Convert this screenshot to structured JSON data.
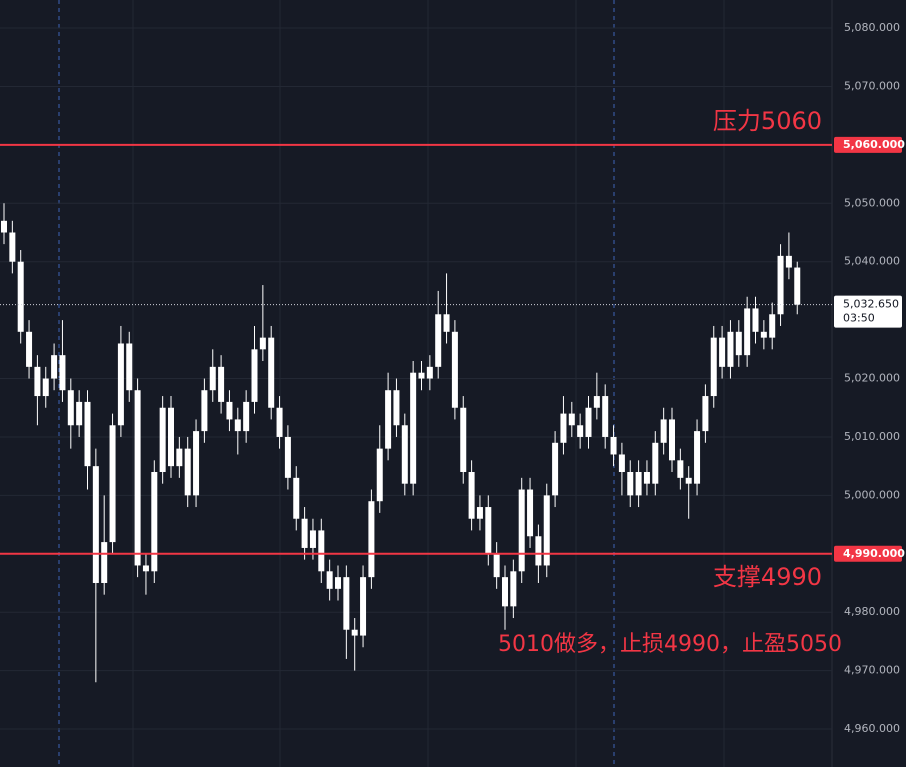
{
  "chart_data": {
    "type": "candlestick",
    "open": [
      5047,
      5045,
      5040,
      5028,
      5022,
      5017,
      5020,
      5024,
      5018,
      5012,
      5016,
      5005,
      4985,
      4992,
      5012,
      5026,
      5018,
      4988,
      4987,
      5004,
      5015,
      5005,
      5008,
      5000,
      5011,
      5018,
      5022,
      5016,
      5013,
      5011,
      5016,
      5025,
      5027,
      5015,
      5010,
      5003,
      4996,
      4991,
      4994,
      4987,
      4984,
      4986,
      4977,
      4976,
      4986,
      4999,
      5008,
      5018,
      5012,
      5002,
      5021,
      5020,
      5022,
      5031,
      5028,
      5015,
      5004,
      4996,
      4998,
      4990,
      4986,
      4981,
      4987,
      5001,
      4993,
      4988,
      5000,
      5009,
      5014,
      5012,
      5010,
      5015,
      5017,
      5010,
      5007,
      5004,
      5000,
      5004,
      5002,
      5009,
      5013,
      5006,
      5003,
      5002,
      5011,
      5017,
      5027,
      5022,
      5028,
      5024,
      5032,
      5028,
      5027,
      5031,
      5041,
      5039
    ],
    "high": [
      5050,
      5047,
      5042,
      5030,
      5024,
      5022,
      5026,
      5030,
      5020,
      5018,
      5018,
      5008,
      5000,
      5014,
      5029,
      5028,
      5020,
      4990,
      5006,
      5017,
      5017,
      5010,
      5010,
      5013,
      5020,
      5025,
      5024,
      5018,
      5015,
      5018,
      5029,
      5036,
      5029,
      5017,
      5012,
      5005,
      4998,
      4996,
      4996,
      4989,
      4988,
      4988,
      4979,
      4988,
      5001,
      5012,
      5021,
      5020,
      5014,
      5023,
      5023,
      5024,
      5035,
      5038,
      5030,
      5017,
      5006,
      5000,
      5000,
      4992,
      4988,
      4989,
      5003,
      5003,
      4995,
      5002,
      5011,
      5017,
      5016,
      5014,
      5017,
      5021,
      5019,
      5012,
      5009,
      5006,
      5006,
      5006,
      5011,
      5015,
      5015,
      5008,
      5005,
      5013,
      5019,
      5029,
      5029,
      5030,
      5030,
      5034,
      5034,
      5030,
      5033,
      5043,
      5045,
      5040
    ],
    "low": [
      5043,
      5038,
      5026,
      5020,
      5012,
      5015,
      5018,
      5016,
      5008,
      5010,
      5001,
      4968,
      4983,
      4990,
      5010,
      5016,
      4986,
      4983,
      4985,
      5002,
      5003,
      5003,
      4998,
      4998,
      5009,
      5016,
      5014,
      5011,
      5007,
      5009,
      5014,
      5023,
      5013,
      5008,
      5001,
      4994,
      4989,
      4989,
      4985,
      4982,
      4982,
      4972,
      4970,
      4974,
      4984,
      4997,
      5006,
      5010,
      5000,
      5000,
      5018,
      5018,
      5020,
      5026,
      5013,
      5002,
      4994,
      4994,
      4988,
      4984,
      4977,
      4979,
      4985,
      4991,
      4985,
      4986,
      4998,
      5007,
      5010,
      5008,
      5008,
      5013,
      5008,
      5005,
      5000,
      4998,
      4998,
      5000,
      5000,
      5007,
      5004,
      5001,
      4996,
      5000,
      5009,
      5015,
      5020,
      5020,
      5022,
      5022,
      5026,
      5025,
      5025,
      5029,
      5037,
      5031
    ],
    "close": [
      5045,
      5040,
      5028,
      5022,
      5017,
      5020,
      5024,
      5018,
      5012,
      5016,
      5005,
      4985,
      4992,
      5012,
      5026,
      5018,
      4988,
      4987,
      5004,
      5015,
      5005,
      5008,
      5000,
      5011,
      5018,
      5022,
      5016,
      5013,
      5011,
      5016,
      5025,
      5027,
      5015,
      5010,
      5003,
      4996,
      4991,
      4994,
      4987,
      4984,
      4986,
      4977,
      4976,
      4986,
      4999,
      5008,
      5018,
      5012,
      5002,
      5021,
      5020,
      5022,
      5031,
      5028,
      5015,
      5004,
      4996,
      4998,
      4990,
      4986,
      4981,
      4987,
      5001,
      4993,
      4988,
      5000,
      5009,
      5014,
      5012,
      5010,
      5015,
      5017,
      5010,
      5007,
      5004,
      5000,
      5004,
      5002,
      5009,
      5013,
      5006,
      5003,
      5002,
      5011,
      5017,
      5027,
      5022,
      5028,
      5024,
      5032,
      5028,
      5027,
      5031,
      5041,
      5039,
      5032.65
    ],
    "color": "#ffffff",
    "ylim": [
      4953.5,
      5084.8
    ],
    "yticks": [
      {
        "value": 4960,
        "label": "4,960.000"
      },
      {
        "value": 4970,
        "label": "4,970.000"
      },
      {
        "value": 4980,
        "label": "4,980.000"
      },
      {
        "value": 5000,
        "label": "5,000.000"
      },
      {
        "value": 5010,
        "label": "5,010.000"
      },
      {
        "value": 5020,
        "label": "5,020.000"
      },
      {
        "value": 5040,
        "label": "5,040.000"
      },
      {
        "value": 5050,
        "label": "5,050.000"
      },
      {
        "value": 5070,
        "label": "5,070.000"
      },
      {
        "value": 5080,
        "label": "5,080.000"
      }
    ],
    "levels": [
      {
        "value": 5060,
        "label": "5,060.000",
        "text": "压力5060"
      },
      {
        "value": 4990,
        "label": "4,990.000",
        "text": "支撑4990"
      }
    ],
    "level_color": "#f23645",
    "last_price": {
      "value": 5032.65,
      "label": "5,032.650"
    },
    "countdown": "03:50",
    "annotation": "5010做多，止损4990，止盈5050"
  }
}
